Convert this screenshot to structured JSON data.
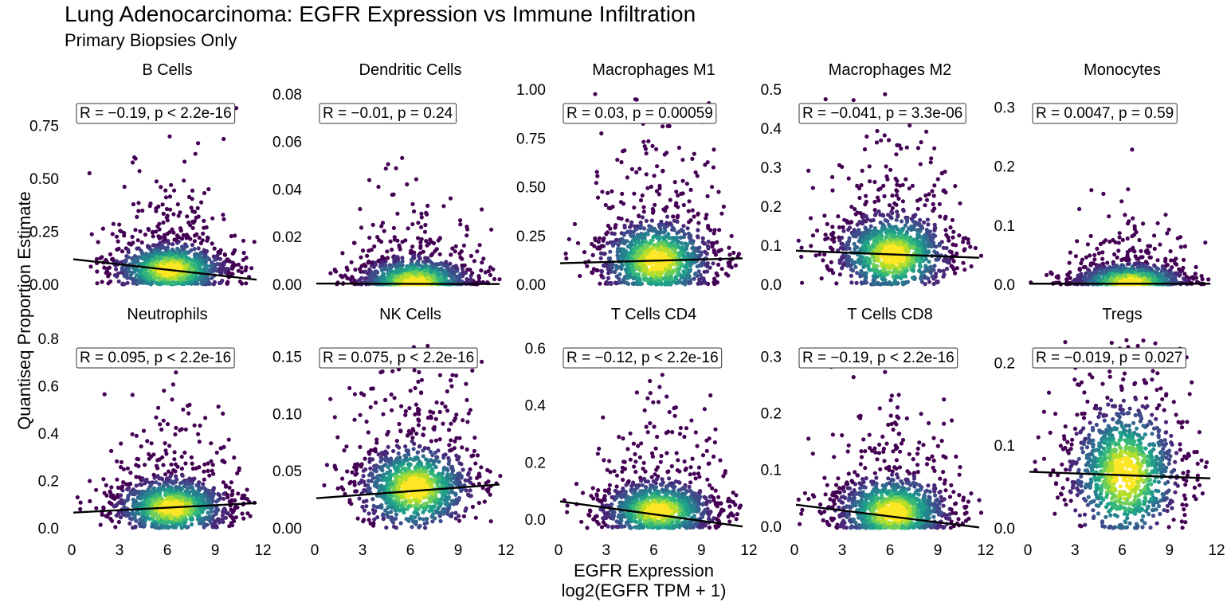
{
  "chart_data": {
    "type": "scatter",
    "title": "Lung Adenocarcinoma: EGFR Expression vs Immune Infiltration",
    "subtitle": "Primary Biopsies Only",
    "xlabel_line1": "EGFR Expression",
    "xlabel_line2": "log2(EGFR TPM + 1)",
    "ylabel": "Quantiseq Proportion Estimate",
    "x_ticks": [
      0,
      3,
      6,
      9,
      12
    ],
    "xlim": [
      0,
      12
    ],
    "point_color_scale": "viridis (point density)",
    "regression_line_color": "#000000",
    "panels": [
      {
        "name": "B Cells",
        "annotation": "R = −0.19, p < 2.2e-16",
        "ylim": [
          0,
          0.92
        ],
        "y_ticks": [
          "0.00",
          "0.25",
          "0.50",
          "0.75"
        ],
        "y_tick_values": [
          0,
          0.25,
          0.5,
          0.75
        ],
        "fit_line": [
          [
            0.1,
            0.118
          ],
          [
            11.6,
            0.022
          ]
        ],
        "center": [
          6.2,
          0.07
        ],
        "spread_y": 0.06
      },
      {
        "name": "Dendritic Cells",
        "annotation": "R = −0.01, p = 0.24",
        "ylim": [
          0,
          0.082
        ],
        "y_ticks": [
          "0.00",
          "0.02",
          "0.04",
          "0.06",
          "0.08"
        ],
        "y_tick_values": [
          0,
          0.02,
          0.04,
          0.06,
          0.08
        ],
        "fit_line": [
          [
            0.1,
            0.0003
          ],
          [
            11.6,
            0.0001
          ]
        ],
        "center": [
          6.3,
          0.0008
        ],
        "spread_y": 0.005
      },
      {
        "name": "Macrophages M1",
        "annotation": "R = 0.03, p = 0.00059",
        "ylim": [
          0,
          1.0
        ],
        "y_ticks": [
          "0.00",
          "0.25",
          "0.50",
          "0.75",
          "1.00"
        ],
        "y_tick_values": [
          0,
          0.25,
          0.5,
          0.75,
          1.0
        ],
        "fit_line": [
          [
            0.1,
            0.108
          ],
          [
            11.6,
            0.133
          ]
        ],
        "center": [
          6.2,
          0.12
        ],
        "spread_y": 0.1
      },
      {
        "name": "Macrophages M2",
        "annotation": "R = −0.041, p = 3.3e-06",
        "ylim": [
          0,
          0.5
        ],
        "y_ticks": [
          "0.0",
          "0.1",
          "0.2",
          "0.3",
          "0.4",
          "0.5"
        ],
        "y_tick_values": [
          0,
          0.1,
          0.2,
          0.3,
          0.4,
          0.5
        ],
        "fit_line": [
          [
            0.1,
            0.086
          ],
          [
            11.6,
            0.068
          ]
        ],
        "center": [
          6.2,
          0.075
        ],
        "spread_y": 0.05
      },
      {
        "name": "Monocytes",
        "annotation": "R = 0.0047, p = 0.59",
        "ylim": [
          0,
          0.33
        ],
        "y_ticks": [
          "0.0",
          "0.1",
          "0.2",
          "0.3"
        ],
        "y_tick_values": [
          0,
          0.1,
          0.2,
          0.3
        ],
        "fit_line": [
          [
            0.1,
            0.001
          ],
          [
            11.6,
            0.001
          ]
        ],
        "center": [
          6.5,
          0.004
        ],
        "spread_y": 0.015
      },
      {
        "name": "Neutrophils",
        "annotation": "R = 0.095, p < 2.2e-16",
        "ylim": [
          0,
          0.82
        ],
        "y_ticks": [
          "0.0",
          "0.2",
          "0.4",
          "0.6",
          "0.8"
        ],
        "y_tick_values": [
          0,
          0.2,
          0.4,
          0.6,
          0.8
        ],
        "fit_line": [
          [
            0.1,
            0.065
          ],
          [
            11.6,
            0.105
          ]
        ],
        "center": [
          6.3,
          0.085
        ],
        "spread_y": 0.06
      },
      {
        "name": "NK Cells",
        "annotation": "R = 0.075, p < 2.2e-16",
        "ylim": [
          0,
          0.17
        ],
        "y_ticks": [
          "0.00",
          "0.05",
          "0.10",
          "0.15"
        ],
        "y_tick_values": [
          0,
          0.05,
          0.1,
          0.15
        ],
        "fit_line": [
          [
            0.1,
            0.026
          ],
          [
            11.6,
            0.038
          ]
        ],
        "center": [
          6.3,
          0.035
        ],
        "spread_y": 0.018
      },
      {
        "name": "T Cells CD4",
        "annotation": "R = −0.12, p < 2.2e-16",
        "ylim": [
          -0.03,
          0.65
        ],
        "y_ticks": [
          "0.0",
          "0.2",
          "0.4",
          "0.6"
        ],
        "y_tick_values": [
          0,
          0.2,
          0.4,
          0.6
        ],
        "fit_line": [
          [
            0.1,
            0.063
          ],
          [
            11.6,
            -0.025
          ]
        ],
        "center": [
          6.3,
          0.03
        ],
        "spread_y": 0.05
      },
      {
        "name": "T Cells CD8",
        "annotation": "R = −0.19, p < 2.2e-16",
        "ylim": [
          -0.003,
          0.34
        ],
        "y_ticks": [
          "0.0",
          "0.1",
          "0.2",
          "0.3"
        ],
        "y_tick_values": [
          0,
          0.1,
          0.2,
          0.3
        ],
        "fit_line": [
          [
            0.1,
            0.038
          ],
          [
            11.6,
            -0.002
          ]
        ],
        "center": [
          6.2,
          0.025
        ],
        "spread_y": 0.03
      },
      {
        "name": "Tregs",
        "annotation": "R = −0.019, p = 0.027",
        "ylim": [
          0,
          0.235
        ],
        "y_ticks": [
          "0.0",
          "0.1",
          "0.2"
        ],
        "y_tick_values": [
          0,
          0.1,
          0.2
        ],
        "fit_line": [
          [
            0.1,
            0.068
          ],
          [
            11.6,
            0.06
          ]
        ],
        "center": [
          6.2,
          0.065
        ],
        "spread_y": 0.04
      }
    ]
  }
}
